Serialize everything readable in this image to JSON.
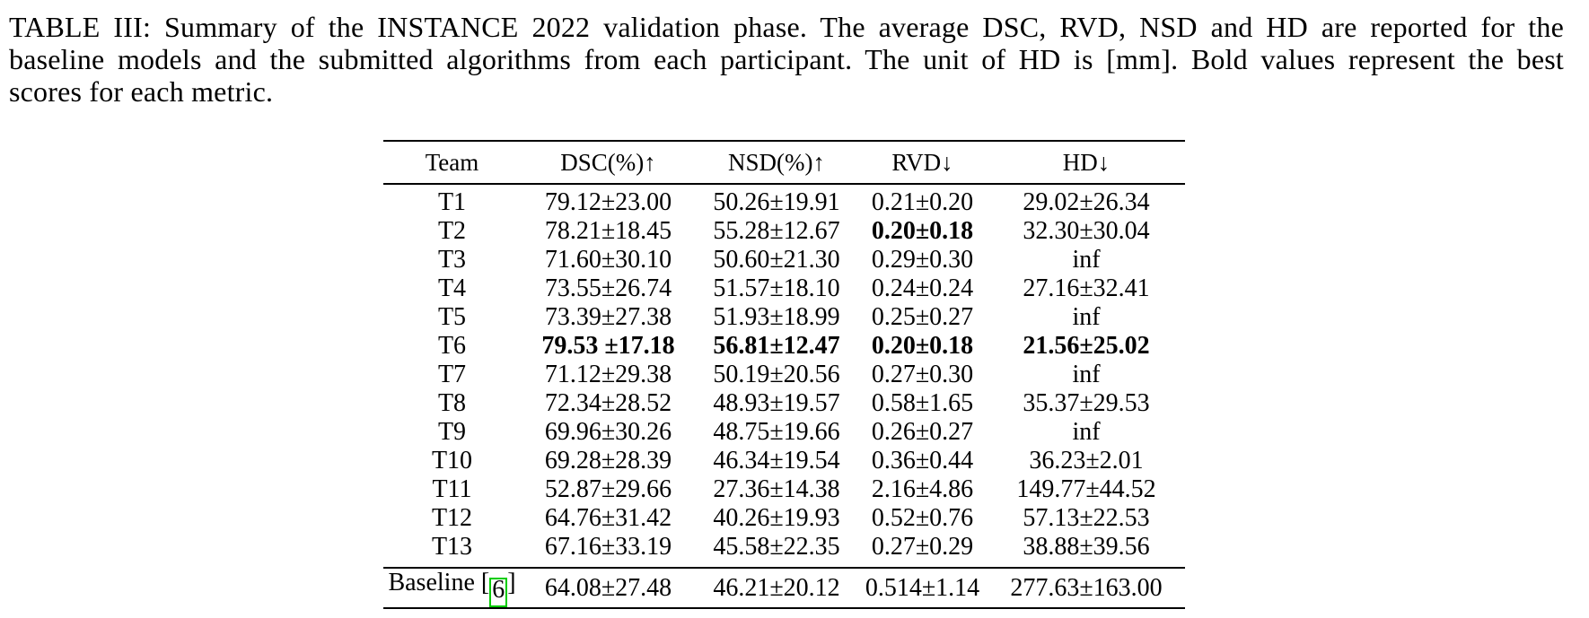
{
  "caption": {
    "lines": [
      "TABLE III: Summary of the INSTANCE 2022 validation phase. The average DSC, RVD, NSD and HD are reported for the",
      "baseline models and the submitted algorithms from each participant. The unit of HD is [mm]. Bold values represent the best",
      "scores for each metric."
    ]
  },
  "table": {
    "columns": [
      "Team",
      "DSC(%)↑",
      "NSD(%)↑",
      "RVD↓",
      "HD↓"
    ],
    "unit_note": "HD in mm",
    "rows": [
      {
        "team": "T1",
        "dsc": "79.12±23.00",
        "nsd": "50.26±19.91",
        "rvd": "0.21±0.20",
        "hd": "29.02±26.34",
        "bold": []
      },
      {
        "team": "T2",
        "dsc": "78.21±18.45",
        "nsd": "55.28±12.67",
        "rvd": "0.20±0.18",
        "hd": "32.30±30.04",
        "bold": [
          "rvd"
        ]
      },
      {
        "team": "T3",
        "dsc": "71.60±30.10",
        "nsd": "50.60±21.30",
        "rvd": "0.29±0.30",
        "hd": "inf",
        "bold": []
      },
      {
        "team": "T4",
        "dsc": "73.55±26.74",
        "nsd": "51.57±18.10",
        "rvd": "0.24±0.24",
        "hd": "27.16±32.41",
        "bold": []
      },
      {
        "team": "T5",
        "dsc": "73.39±27.38",
        "nsd": "51.93±18.99",
        "rvd": "0.25±0.27",
        "hd": "inf",
        "bold": []
      },
      {
        "team": "T6",
        "dsc": "79.53 ±17.18",
        "nsd": "56.81±12.47",
        "rvd": "0.20±0.18",
        "hd": "21.56±25.02",
        "bold": [
          "dsc",
          "nsd",
          "rvd",
          "hd"
        ]
      },
      {
        "team": "T7",
        "dsc": "71.12±29.38",
        "nsd": "50.19±20.56",
        "rvd": "0.27±0.30",
        "hd": "inf",
        "bold": []
      },
      {
        "team": "T8",
        "dsc": "72.34±28.52",
        "nsd": "48.93±19.57",
        "rvd": "0.58±1.65",
        "hd": "35.37±29.53",
        "bold": []
      },
      {
        "team": "T9",
        "dsc": "69.96±30.26",
        "nsd": "48.75±19.66",
        "rvd": "0.26±0.27",
        "hd": "inf",
        "bold": []
      },
      {
        "team": "T10",
        "dsc": "69.28±28.39",
        "nsd": "46.34±19.54",
        "rvd": "0.36±0.44",
        "hd": "36.23±2.01",
        "bold": []
      },
      {
        "team": "T11",
        "dsc": "52.87±29.66",
        "nsd": "27.36±14.38",
        "rvd": "2.16±4.86",
        "hd": "149.77±44.52",
        "bold": []
      },
      {
        "team": "T12",
        "dsc": "64.76±31.42",
        "nsd": "40.26±19.93",
        "rvd": "0.52±0.76",
        "hd": "57.13±22.53",
        "bold": []
      },
      {
        "team": "T13",
        "dsc": "67.16±33.19",
        "nsd": "45.58±22.35",
        "rvd": "0.27±0.29",
        "hd": "38.88±39.56",
        "bold": []
      }
    ],
    "baseline": {
      "label_prefix": "Baseline [",
      "citation": "6",
      "label_suffix": "]",
      "dsc": "64.08±27.48",
      "nsd": "46.21±20.12",
      "rvd": "0.514±1.14",
      "hd": "277.63±163.00"
    },
    "citation_box_color": "#00cc00"
  }
}
